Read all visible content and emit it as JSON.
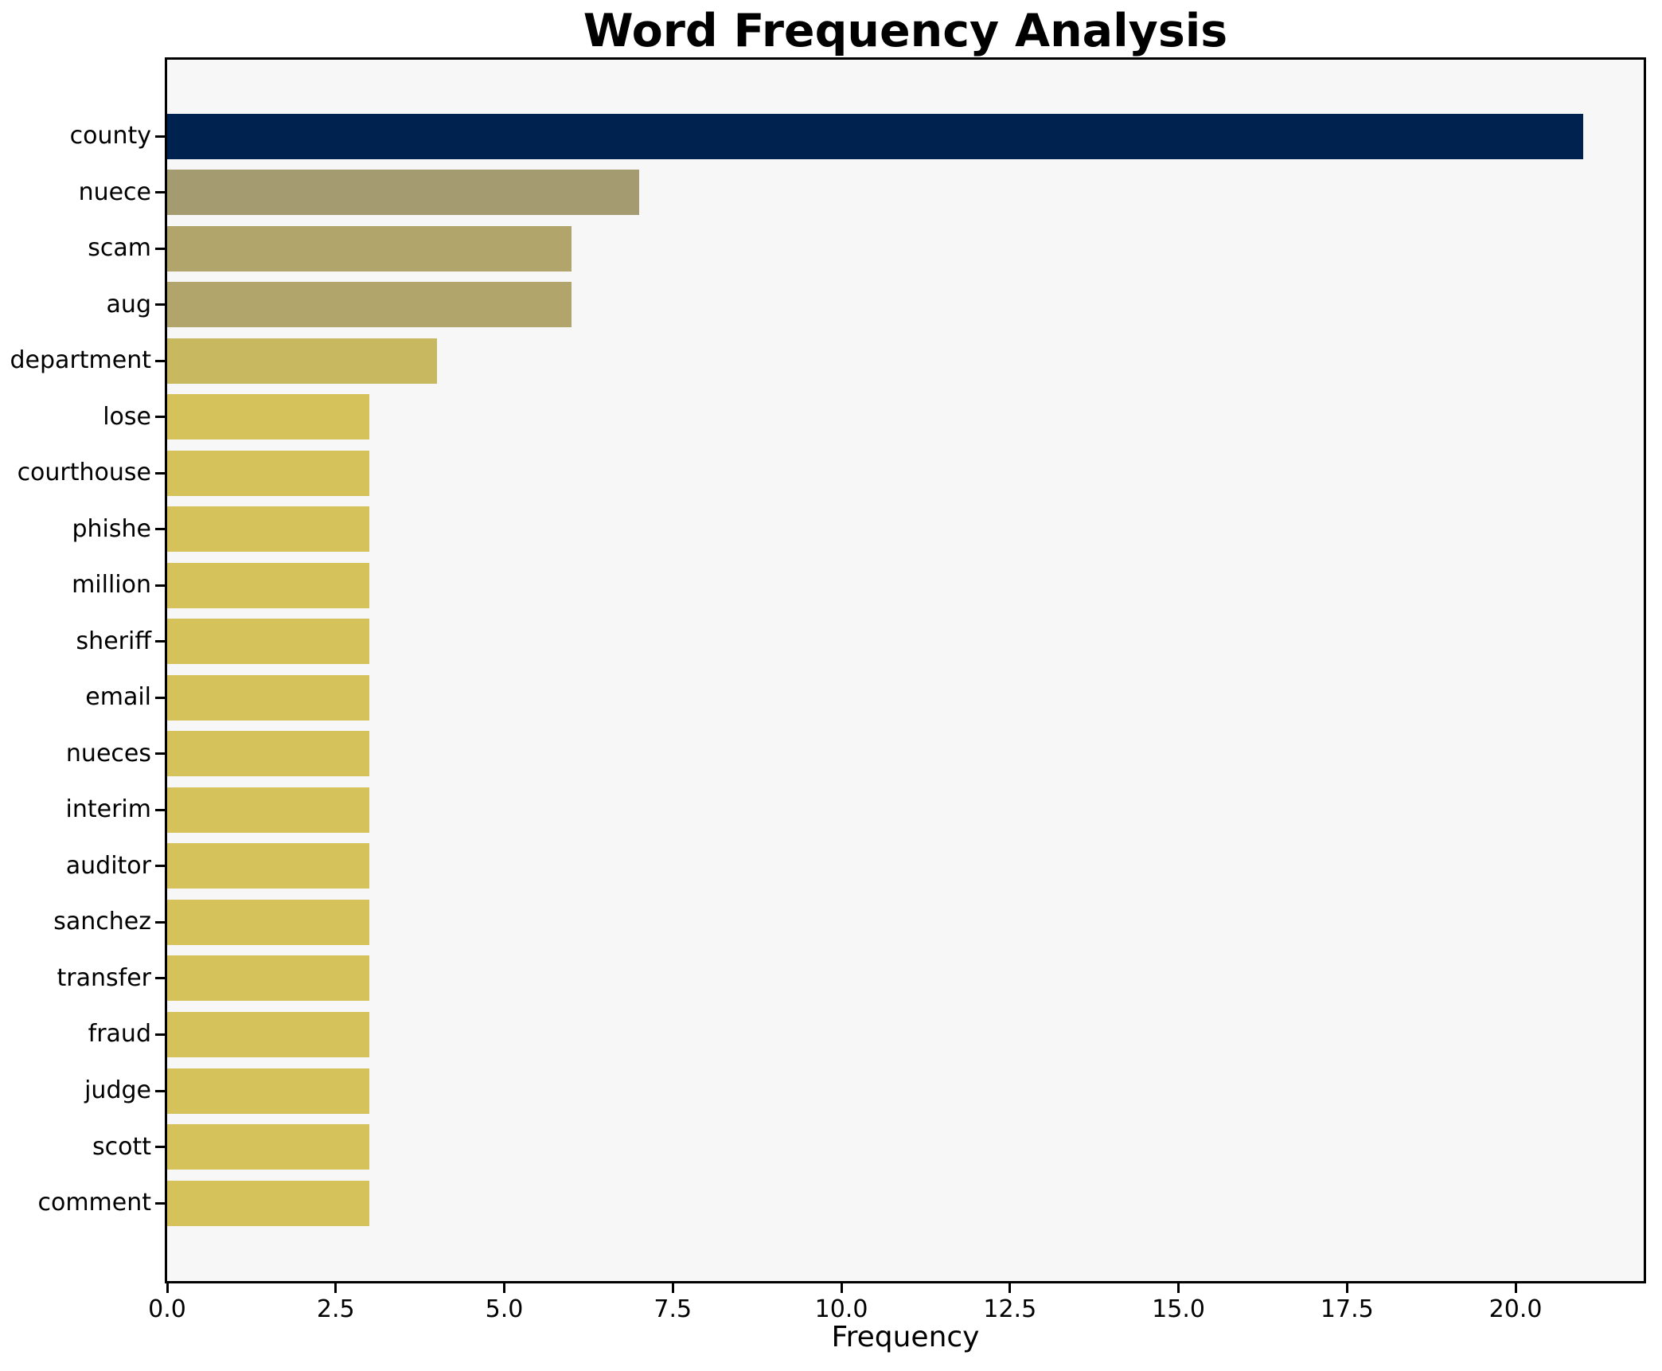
{
  "figure": {
    "background": "#ffffff",
    "plot_background": "#f7f7f7",
    "spine_color": "#000000",
    "text_color": "#000000"
  },
  "chart_data": {
    "type": "bar",
    "orientation": "horizontal",
    "title": "Word Frequency Analysis",
    "xlabel": "Frequency",
    "ylabel": "",
    "grid": false,
    "legend": false,
    "categories": [
      "county",
      "nuece",
      "scam",
      "aug",
      "department",
      "lose",
      "courthouse",
      "phishe",
      "million",
      "sheriff",
      "email",
      "nueces",
      "interim",
      "auditor",
      "sanchez",
      "transfer",
      "fraud",
      "judge",
      "scott",
      "comment"
    ],
    "values": [
      21,
      7,
      6,
      6,
      4,
      3,
      3,
      3,
      3,
      3,
      3,
      3,
      3,
      3,
      3,
      3,
      3,
      3,
      3,
      3
    ],
    "bar_colors": [
      "#00224e",
      "#a49b71",
      "#b1a56c",
      "#b1a56c",
      "#c8b960",
      "#d6c25b",
      "#d6c25b",
      "#d6c25b",
      "#d6c25b",
      "#d6c25b",
      "#d6c25b",
      "#d6c25b",
      "#d6c25b",
      "#d6c25b",
      "#d6c25b",
      "#d6c25b",
      "#d6c25b",
      "#d6c25b",
      "#d6c25b",
      "#d6c25b"
    ],
    "xlim": [
      0,
      21.9
    ],
    "xticks": [
      0,
      2.5,
      5,
      7.5,
      10,
      12.5,
      15,
      17.5,
      20
    ],
    "xtick_labels": [
      "0.0",
      "2.5",
      "5.0",
      "7.5",
      "10.0",
      "12.5",
      "15.0",
      "17.5",
      "20.0"
    ]
  }
}
